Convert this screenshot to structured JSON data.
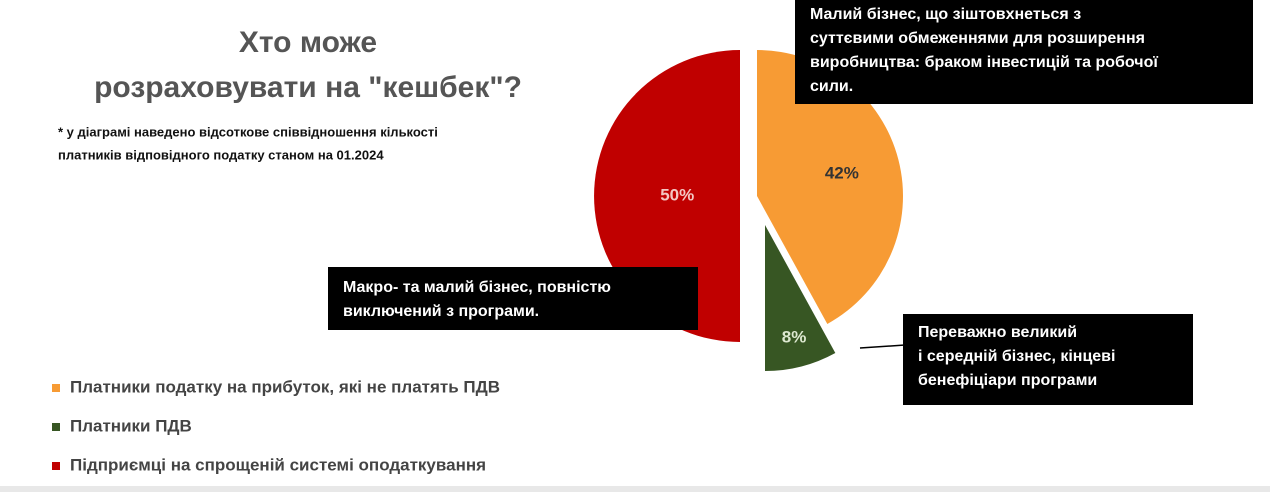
{
  "chart_data": {
    "type": "pie",
    "title": [
      "Хто може",
      "розраховувати на \"кешбек\"?"
    ],
    "subtitle": [
      "* у діаграмі наведено відсоткове співвідношення кількості",
      "платників відповідного податку станом на 01.2024"
    ],
    "categories": [
      "Платники податку на прибуток, які не платять ПДВ",
      "Платники ПДВ",
      "Підприємці на спрощеній системі оподаткування"
    ],
    "values": [
      42,
      8,
      50
    ],
    "value_labels": [
      "42%",
      "8%",
      "50%"
    ],
    "colors": [
      "#f79b34",
      "#375623",
      "#c00000"
    ],
    "annotations": [
      {
        "lines": [
          "Малий бізнес, що зіштовхнеться з",
          "суттєвими обмеженнями для розширення",
          "виробництва: браком інвестицій та робочої",
          "сили."
        ]
      },
      {
        "lines": [
          "Макро- та малий бізнес, повністю",
          "виключений з програми."
        ]
      },
      {
        "lines": [
          "Переважно великий",
          "і середній бізнес, кінцеві",
          "бенефіціари програми"
        ]
      }
    ]
  }
}
